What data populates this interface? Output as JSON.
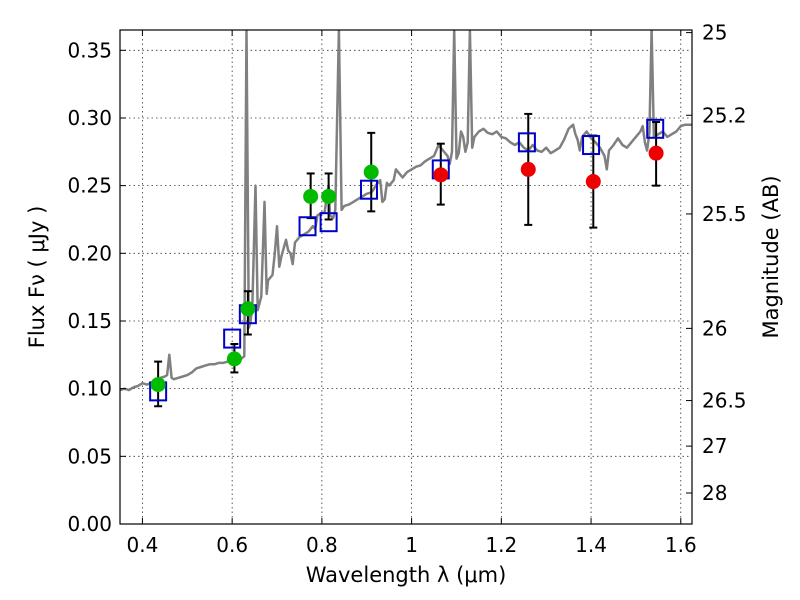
{
  "chart_data": {
    "type": "scatter",
    "xlabel": "Wavelength  λ (μm)",
    "ylabel": "Flux  Fν  ( μJy )",
    "y2label": "Magnitude (AB)",
    "xlim": [
      0.35,
      1.625
    ],
    "ylim": [
      0.0,
      0.365
    ],
    "grid": true,
    "x_ticks": [
      {
        "value": 0.4,
        "label": "0.4"
      },
      {
        "value": 0.6,
        "label": "0.6"
      },
      {
        "value": 0.8,
        "label": "0.8"
      },
      {
        "value": 1.0,
        "label": "1"
      },
      {
        "value": 1.2,
        "label": "1.2"
      },
      {
        "value": 1.4,
        "label": "1.4"
      },
      {
        "value": 1.6,
        "label": "1.6"
      }
    ],
    "y_ticks": [
      {
        "value": 0.0,
        "label": "0.00"
      },
      {
        "value": 0.05,
        "label": "0.05"
      },
      {
        "value": 0.1,
        "label": "0.10"
      },
      {
        "value": 0.15,
        "label": "0.15"
      },
      {
        "value": 0.2,
        "label": "0.20"
      },
      {
        "value": 0.25,
        "label": "0.25"
      },
      {
        "value": 0.3,
        "label": "0.30"
      },
      {
        "value": 0.35,
        "label": "0.35"
      }
    ],
    "y2_ticks": [
      {
        "mag": 25,
        "label": "25"
      },
      {
        "mag": 25.2,
        "label": "25.2"
      },
      {
        "mag": 25.5,
        "label": "25.5"
      },
      {
        "mag": 26,
        "label": "26"
      },
      {
        "mag": 26.5,
        "label": "26.5"
      },
      {
        "mag": 27,
        "label": "27"
      },
      {
        "mag": 28,
        "label": "28"
      }
    ],
    "series": [
      {
        "kind": "line",
        "color": "#808080",
        "points": [
          [
            0.35,
            0.099
          ],
          [
            0.36,
            0.1
          ],
          [
            0.37,
            0.099
          ],
          [
            0.38,
            0.101
          ],
          [
            0.39,
            0.102
          ],
          [
            0.4,
            0.104
          ],
          [
            0.41,
            0.103
          ],
          [
            0.42,
            0.104
          ],
          [
            0.43,
            0.105
          ],
          [
            0.44,
            0.108
          ],
          [
            0.45,
            0.109
          ],
          [
            0.455,
            0.11
          ],
          [
            0.46,
            0.125
          ],
          [
            0.465,
            0.108
          ],
          [
            0.47,
            0.107
          ],
          [
            0.48,
            0.108
          ],
          [
            0.49,
            0.109
          ],
          [
            0.5,
            0.11
          ],
          [
            0.51,
            0.112
          ],
          [
            0.52,
            0.115
          ],
          [
            0.53,
            0.116
          ],
          [
            0.54,
            0.117
          ],
          [
            0.55,
            0.118
          ],
          [
            0.56,
            0.118
          ],
          [
            0.57,
            0.119
          ],
          [
            0.58,
            0.119
          ],
          [
            0.59,
            0.12
          ],
          [
            0.6,
            0.121
          ],
          [
            0.61,
            0.122
          ],
          [
            0.62,
            0.122
          ],
          [
            0.627,
            0.124
          ],
          [
            0.632,
            0.365
          ],
          [
            0.637,
            0.145
          ],
          [
            0.64,
            0.148
          ],
          [
            0.645,
            0.16
          ],
          [
            0.652,
            0.25
          ],
          [
            0.657,
            0.158
          ],
          [
            0.665,
            0.168
          ],
          [
            0.672,
            0.238
          ],
          [
            0.677,
            0.17
          ],
          [
            0.68,
            0.18
          ],
          [
            0.69,
            0.184
          ],
          [
            0.695,
            0.2
          ],
          [
            0.7,
            0.22
          ],
          [
            0.705,
            0.19
          ],
          [
            0.71,
            0.198
          ],
          [
            0.72,
            0.21
          ],
          [
            0.725,
            0.202
          ],
          [
            0.73,
            0.2
          ],
          [
            0.735,
            0.192
          ],
          [
            0.74,
            0.208
          ],
          [
            0.75,
            0.212
          ],
          [
            0.76,
            0.214
          ],
          [
            0.77,
            0.216
          ],
          [
            0.78,
            0.22
          ],
          [
            0.785,
            0.218
          ],
          [
            0.79,
            0.228
          ],
          [
            0.8,
            0.23
          ],
          [
            0.806,
            0.23
          ],
          [
            0.81,
            0.24
          ],
          [
            0.815,
            0.25
          ],
          [
            0.818,
            0.228
          ],
          [
            0.825,
            0.226
          ],
          [
            0.83,
            0.232
          ],
          [
            0.838,
            0.365
          ],
          [
            0.844,
            0.232
          ],
          [
            0.85,
            0.235
          ],
          [
            0.86,
            0.236
          ],
          [
            0.87,
            0.238
          ],
          [
            0.88,
            0.24
          ],
          [
            0.89,
            0.242
          ],
          [
            0.9,
            0.244
          ],
          [
            0.91,
            0.245
          ],
          [
            0.915,
            0.247
          ],
          [
            0.92,
            0.25
          ],
          [
            0.93,
            0.254
          ],
          [
            0.935,
            0.238
          ],
          [
            0.94,
            0.24
          ],
          [
            0.945,
            0.252
          ],
          [
            0.95,
            0.25
          ],
          [
            0.96,
            0.254
          ],
          [
            0.965,
            0.262
          ],
          [
            0.97,
            0.26
          ],
          [
            0.98,
            0.256
          ],
          [
            0.99,
            0.26
          ],
          [
            1.0,
            0.262
          ],
          [
            1.01,
            0.264
          ],
          [
            1.02,
            0.265
          ],
          [
            1.03,
            0.268
          ],
          [
            1.04,
            0.27
          ],
          [
            1.05,
            0.272
          ],
          [
            1.055,
            0.276
          ],
          [
            1.06,
            0.28
          ],
          [
            1.07,
            0.276
          ],
          [
            1.08,
            0.272
          ],
          [
            1.085,
            0.266
          ],
          [
            1.09,
            0.275
          ],
          [
            1.095,
            0.365
          ],
          [
            1.1,
            0.27
          ],
          [
            1.105,
            0.274
          ],
          [
            1.11,
            0.29
          ],
          [
            1.115,
            0.286
          ],
          [
            1.12,
            0.275
          ],
          [
            1.125,
            0.282
          ],
          [
            1.13,
            0.365
          ],
          [
            1.135,
            0.278
          ],
          [
            1.14,
            0.286
          ],
          [
            1.15,
            0.29
          ],
          [
            1.16,
            0.292
          ],
          [
            1.17,
            0.289
          ],
          [
            1.18,
            0.288
          ],
          [
            1.19,
            0.29
          ],
          [
            1.2,
            0.286
          ],
          [
            1.21,
            0.285
          ],
          [
            1.22,
            0.282
          ],
          [
            1.23,
            0.28
          ],
          [
            1.24,
            0.282
          ],
          [
            1.25,
            0.278
          ],
          [
            1.26,
            0.276
          ],
          [
            1.27,
            0.28
          ],
          [
            1.28,
            0.276
          ],
          [
            1.29,
            0.275
          ],
          [
            1.3,
            0.278
          ],
          [
            1.31,
            0.274
          ],
          [
            1.32,
            0.276
          ],
          [
            1.33,
            0.278
          ],
          [
            1.34,
            0.284
          ],
          [
            1.35,
            0.292
          ],
          [
            1.36,
            0.295
          ],
          [
            1.365,
            0.288
          ],
          [
            1.37,
            0.284
          ],
          [
            1.375,
            0.276
          ],
          [
            1.38,
            0.286
          ],
          [
            1.39,
            0.29
          ],
          [
            1.4,
            0.285
          ],
          [
            1.41,
            0.282
          ],
          [
            1.42,
            0.278
          ],
          [
            1.43,
            0.272
          ],
          [
            1.435,
            0.262
          ],
          [
            1.44,
            0.276
          ],
          [
            1.45,
            0.28
          ],
          [
            1.46,
            0.285
          ],
          [
            1.47,
            0.28
          ],
          [
            1.48,
            0.278
          ],
          [
            1.49,
            0.282
          ],
          [
            1.5,
            0.286
          ],
          [
            1.51,
            0.29
          ],
          [
            1.515,
            0.294
          ],
          [
            1.52,
            0.282
          ],
          [
            1.525,
            0.276
          ],
          [
            1.53,
            0.289
          ],
          [
            1.535,
            0.365
          ],
          [
            1.54,
            0.286
          ],
          [
            1.55,
            0.288
          ],
          [
            1.56,
            0.29
          ],
          [
            1.57,
            0.286
          ],
          [
            1.58,
            0.288
          ],
          [
            1.59,
            0.29
          ],
          [
            1.6,
            0.294
          ],
          [
            1.61,
            0.295
          ],
          [
            1.625,
            0.295
          ]
        ]
      },
      {
        "kind": "errorbar",
        "color": "#000000",
        "bars": [
          [
            0.435,
            0.087,
            0.12
          ],
          [
            0.605,
            0.112,
            0.133
          ],
          [
            0.635,
            0.14,
            0.172
          ],
          [
            0.775,
            0.226,
            0.259
          ],
          [
            0.815,
            0.225,
            0.259
          ],
          [
            0.91,
            0.231,
            0.289
          ],
          [
            1.065,
            0.236,
            0.281
          ],
          [
            1.26,
            0.221,
            0.303
          ],
          [
            1.405,
            0.219,
            0.287
          ],
          [
            1.545,
            0.25,
            0.297
          ]
        ]
      },
      {
        "kind": "marker-square",
        "color": "#0000cc",
        "points": [
          [
            0.435,
            0.098
          ],
          [
            0.6,
            0.137
          ],
          [
            0.635,
            0.155
          ],
          [
            0.768,
            0.22
          ],
          [
            0.815,
            0.223
          ],
          [
            0.905,
            0.247
          ],
          [
            1.065,
            0.262
          ],
          [
            1.257,
            0.282
          ],
          [
            1.4,
            0.28
          ],
          [
            1.543,
            0.292
          ]
        ]
      },
      {
        "kind": "marker-circle",
        "color": "#00bb00",
        "points": [
          [
            0.435,
            0.103
          ],
          [
            0.605,
            0.122
          ],
          [
            0.635,
            0.159
          ],
          [
            0.775,
            0.242
          ],
          [
            0.815,
            0.242
          ],
          [
            0.91,
            0.26
          ]
        ]
      },
      {
        "kind": "marker-circle",
        "color": "#ee0000",
        "points": [
          [
            1.065,
            0.258
          ],
          [
            1.26,
            0.262
          ],
          [
            1.405,
            0.253
          ],
          [
            1.545,
            0.274
          ]
        ]
      }
    ]
  }
}
